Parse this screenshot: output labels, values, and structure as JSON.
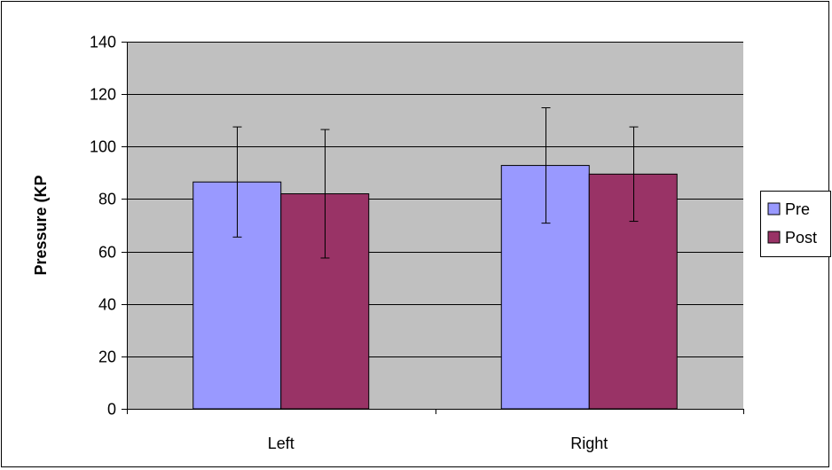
{
  "chart_data": {
    "type": "bar",
    "title": "",
    "xlabel": "",
    "ylabel": "Pressure (KP",
    "categories": [
      "Left",
      "Right"
    ],
    "series": [
      {
        "name": "Pre",
        "color": "#9999FF",
        "values": [
          86.5,
          92.8
        ],
        "error": [
          21,
          22
        ]
      },
      {
        "name": "Post",
        "color": "#993366",
        "values": [
          82,
          89.5
        ],
        "error": [
          24.5,
          18
        ]
      }
    ],
    "ylim": [
      0,
      140
    ],
    "yticks": [
      0,
      20,
      40,
      60,
      80,
      100,
      120,
      140
    ],
    "grid": true,
    "plot_background": "#C0C0C0",
    "legend_position": "right"
  }
}
